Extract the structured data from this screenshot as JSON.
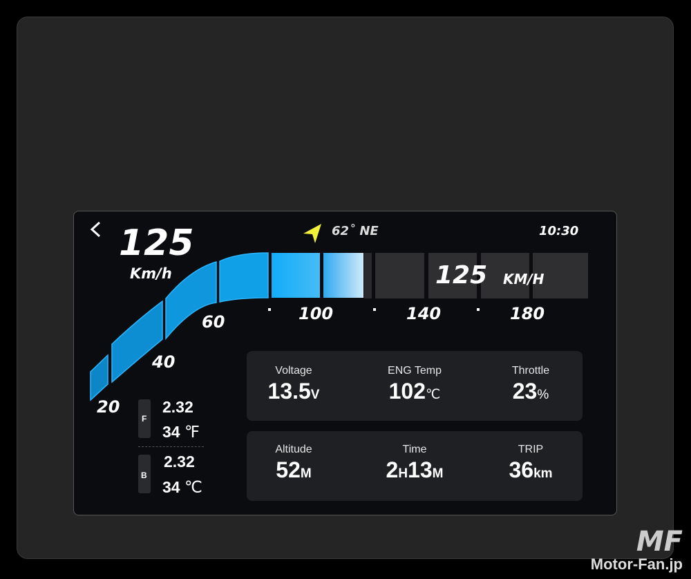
{
  "header": {
    "back_icon": "chevron-left-icon",
    "heading_icon": "navigation-arrow-icon",
    "heading": "62˚ NE",
    "time": "10:30"
  },
  "speed": {
    "value": "125",
    "unit": "Km/h",
    "bar_value": "125",
    "bar_unit": "KM/H",
    "max": 180,
    "ticks": [
      "20",
      "40",
      "60",
      "100",
      "140",
      "180"
    ]
  },
  "colors": {
    "accent": "#12a9f5",
    "heading_icon": "#f2f23a"
  },
  "tires": [
    {
      "label": "F",
      "pressure": "2.32",
      "temp": "34",
      "temp_unit": "℉"
    },
    {
      "label": "B",
      "pressure": "2.32",
      "temp": "34",
      "temp_unit": "℃"
    }
  ],
  "cards": [
    [
      {
        "label": "Voltage",
        "value": "13.5",
        "unit": "V"
      },
      {
        "label": "ENG Temp",
        "value": "102",
        "unit": "℃"
      },
      {
        "label": "Throttle",
        "value": "23",
        "unit": "%"
      }
    ],
    [
      {
        "label": "Altitude",
        "value": "52",
        "unit": "M"
      },
      {
        "label": "Time",
        "value": "2",
        "unit": "H",
        "value2": "13",
        "unit2": "M"
      },
      {
        "label": "TRIP",
        "value": "36",
        "unit": "km"
      }
    ]
  ],
  "watermark": "Motor-Fan.jp"
}
